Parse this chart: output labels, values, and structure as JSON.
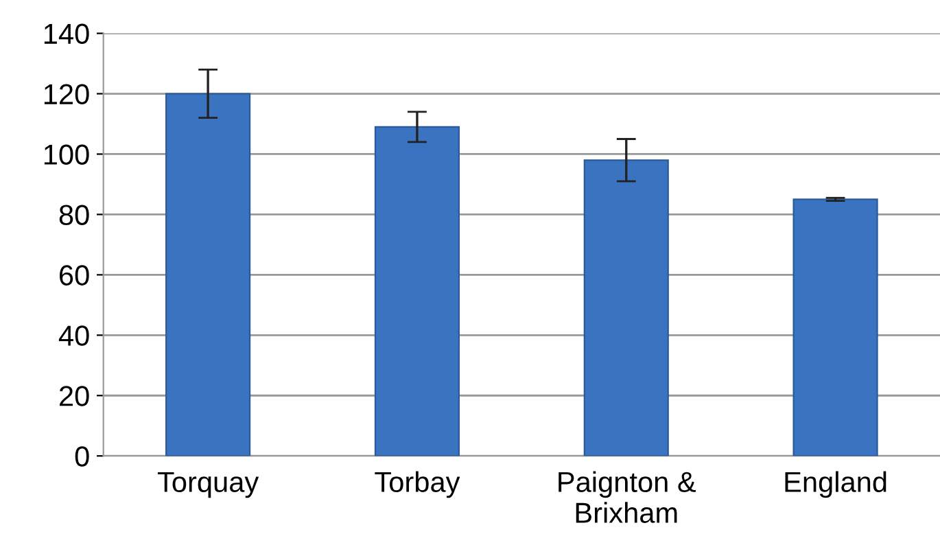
{
  "chart_data": {
    "type": "bar",
    "categories": [
      "Torquay",
      "Torbay",
      "Paignton &\nBrixham",
      "England"
    ],
    "values": [
      120,
      109,
      98,
      85
    ],
    "errors": [
      8,
      5,
      7,
      0.5
    ],
    "color": "#3a74c0",
    "ylim": [
      0,
      140
    ],
    "yticks": [
      0,
      20,
      40,
      60,
      80,
      100,
      120,
      140
    ],
    "grid": "y"
  }
}
